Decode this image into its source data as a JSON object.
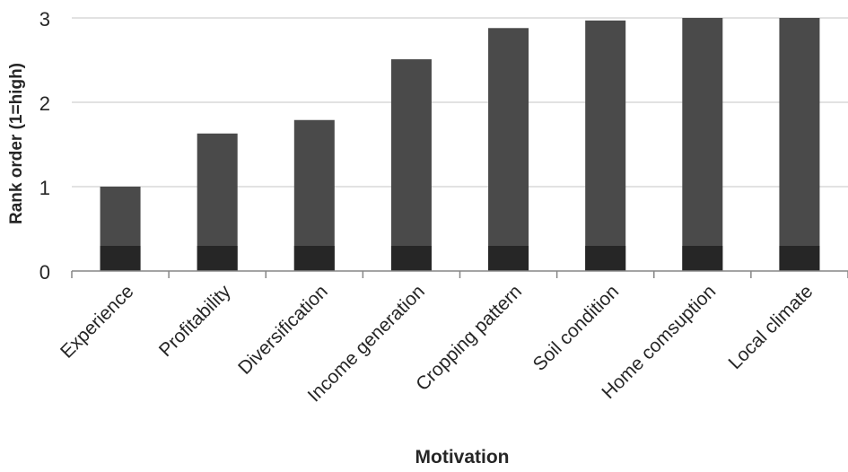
{
  "chart_data": {
    "type": "bar",
    "title": "",
    "xlabel": "Motivation",
    "ylabel": "Rank order (1=high)",
    "categories": [
      "Experience",
      "Profitability",
      "Diversification",
      "Income generation",
      "Cropping pattern",
      "Soil condition",
      "Home comsuption",
      "Local climate"
    ],
    "values": [
      1.0,
      1.63,
      1.79,
      2.51,
      2.88,
      2.97,
      3.0,
      3.0
    ],
    "ylim": [
      0,
      3
    ],
    "yticks": [
      "0",
      "1",
      "2",
      "3"
    ],
    "grid": true,
    "legend": "none",
    "colors": {
      "bar": "#4a4a4a",
      "bar_base": "#262626",
      "grid": "#d9d9d9",
      "axis": "#868686",
      "text": "#262626"
    }
  }
}
